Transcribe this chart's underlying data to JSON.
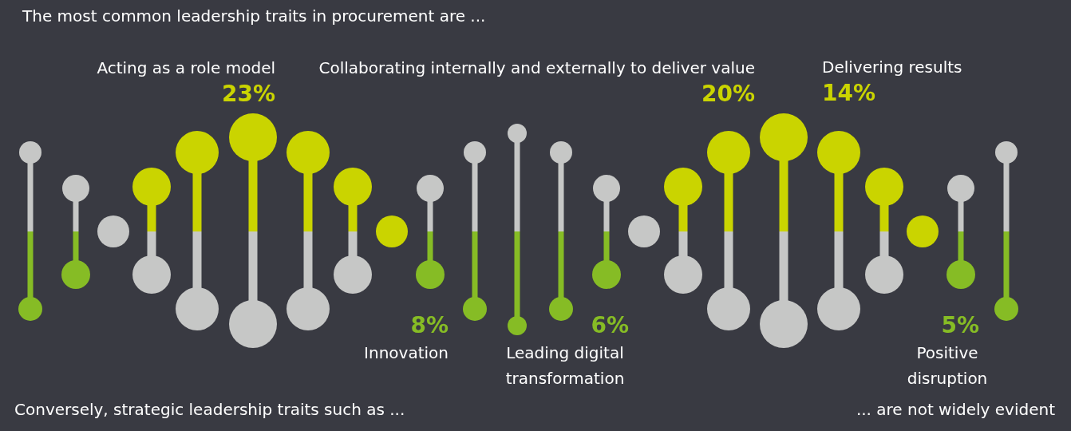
{
  "chart_data": {
    "type": "other",
    "title": "The most common leadership traits in procurement are ...",
    "categories": [
      "Acting as a role model",
      "Collaborating internally and externally to deliver value",
      "Delivering results",
      "Innovation",
      "Leading digital transformation",
      "Positive disruption"
    ],
    "values": [
      23,
      20,
      14,
      8,
      6,
      5
    ],
    "value_labels": [
      "23%",
      "20%",
      "14%",
      "8%",
      "6%",
      "5%"
    ],
    "colors": [
      "#cad400",
      "#cad400",
      "#cad400",
      "#86bc25",
      "#86bc25",
      "#86bc25"
    ],
    "annotations": [
      "Conversely, strategic leadership traits such as ...",
      "... are not widely evident"
    ]
  }
}
